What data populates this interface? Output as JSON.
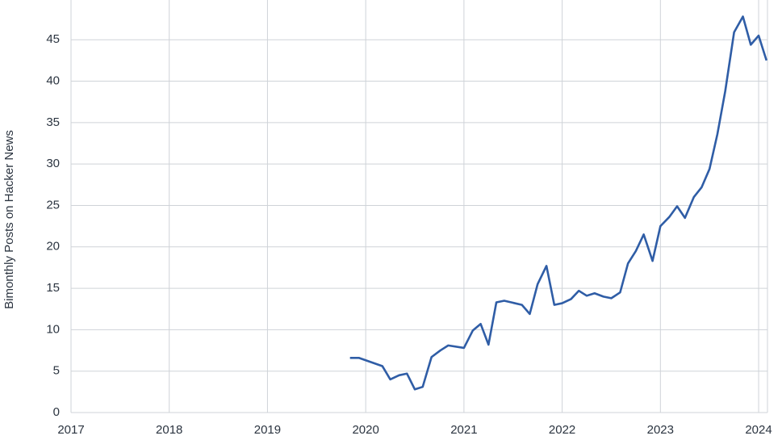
{
  "chart_data": {
    "type": "line",
    "y_label": "Bimonthly Posts on Hacker News",
    "xlim": [
      2017,
      2024.09
    ],
    "xticks": [
      2017,
      2018,
      2019,
      2020,
      2021,
      2022,
      2023,
      2024
    ],
    "ylim": [
      0,
      49.8
    ],
    "yticks": [
      0,
      5,
      10,
      15,
      20,
      25,
      30,
      35,
      40,
      45
    ],
    "grid": true,
    "x": [
      2019.84,
      2019.93,
      2020.17,
      2020.25,
      2020.34,
      2020.42,
      2020.5,
      2020.58,
      2020.67,
      2020.76,
      2020.84,
      2021.0,
      2021.09,
      2021.17,
      2021.25,
      2021.33,
      2021.41,
      2021.59,
      2021.67,
      2021.75,
      2021.84,
      2021.92,
      2022.0,
      2022.09,
      2022.17,
      2022.25,
      2022.33,
      2022.42,
      2022.5,
      2022.59,
      2022.67,
      2022.75,
      2022.83,
      2022.92,
      2023.0,
      2023.09,
      2023.17,
      2023.25,
      2023.34,
      2023.42,
      2023.5,
      2023.58,
      2023.66,
      2023.75,
      2023.84,
      2023.92,
      2024.0,
      2024.08
    ],
    "series": [
      {
        "color": "#2f5da6",
        "values": [
          6.6,
          6.6,
          5.6,
          4.0,
          4.5,
          4.7,
          2.8,
          3.1,
          6.7,
          7.5,
          8.1,
          7.8,
          9.9,
          10.7,
          8.2,
          13.3,
          13.5,
          13.0,
          11.9,
          15.5,
          17.7,
          13.0,
          13.2,
          13.7,
          14.7,
          14.1,
          14.4,
          14.0,
          13.8,
          14.5,
          18.0,
          19.5,
          21.5,
          18.3,
          22.5,
          23.6,
          24.9,
          23.5,
          26.0,
          27.2,
          29.4,
          33.6,
          38.8,
          45.9,
          47.8,
          44.4,
          45.5,
          42.5
        ]
      }
    ]
  }
}
